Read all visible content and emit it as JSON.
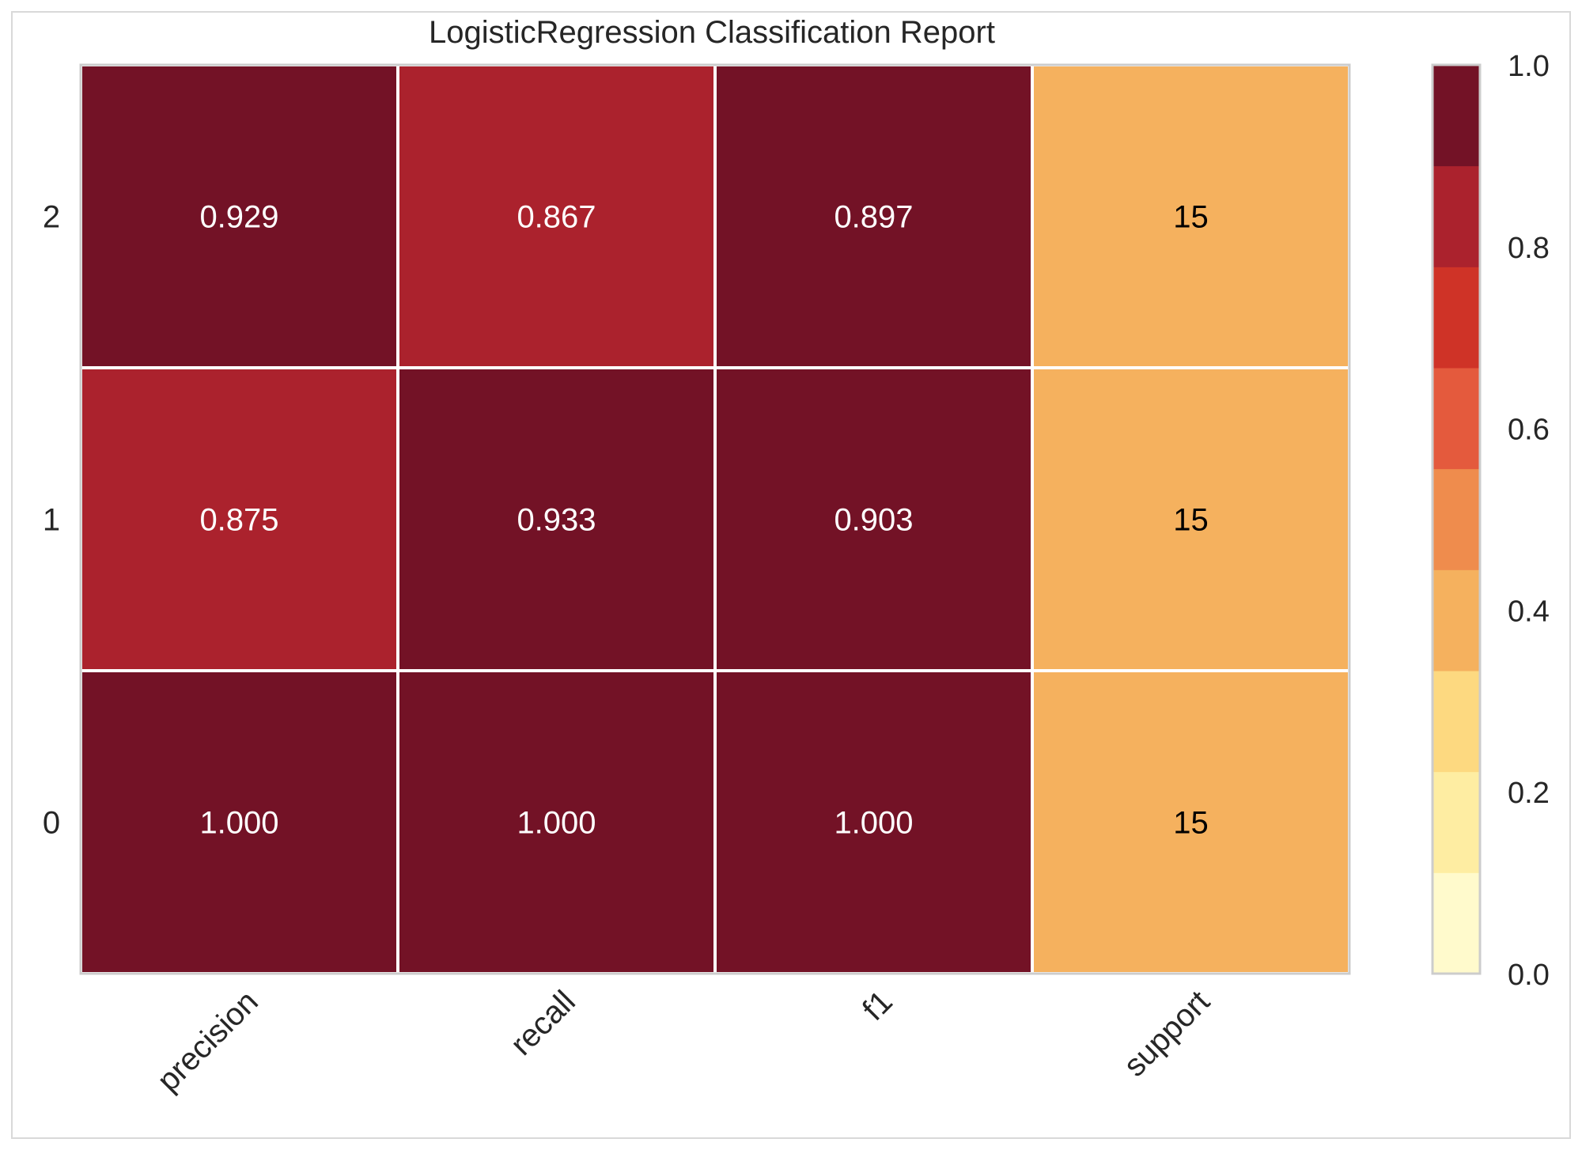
{
  "chart_data": {
    "type": "heatmap",
    "title": "LogisticRegression Classification Report",
    "columns": [
      "precision",
      "recall",
      "f1",
      "support"
    ],
    "rows": [
      "2",
      "1",
      "0"
    ],
    "values": [
      [
        0.929,
        0.867,
        0.897,
        15
      ],
      [
        0.875,
        0.933,
        0.903,
        15
      ],
      [
        1.0,
        1.0,
        1.0,
        15
      ]
    ],
    "cell_labels": [
      [
        "0.929",
        "0.867",
        "0.897",
        "15"
      ],
      [
        "0.875",
        "0.933",
        "0.903",
        "15"
      ],
      [
        "1.000",
        "1.000",
        "1.000",
        "15"
      ]
    ],
    "colorbar": {
      "range": [
        0.0,
        1.0
      ],
      "ticks": [
        "0.0",
        "0.2",
        "0.4",
        "0.6",
        "0.8",
        "1.0"
      ],
      "colors": [
        "#fffacc",
        "#feeda2",
        "#fdd980",
        "#f5b15e",
        "#ef8c4d",
        "#e45a3d",
        "#cf3327",
        "#ab222d",
        "#731226"
      ]
    },
    "support_color": "#f5b15e",
    "dark_text_color": "#ffffff",
    "light_text_color": "#000000"
  }
}
